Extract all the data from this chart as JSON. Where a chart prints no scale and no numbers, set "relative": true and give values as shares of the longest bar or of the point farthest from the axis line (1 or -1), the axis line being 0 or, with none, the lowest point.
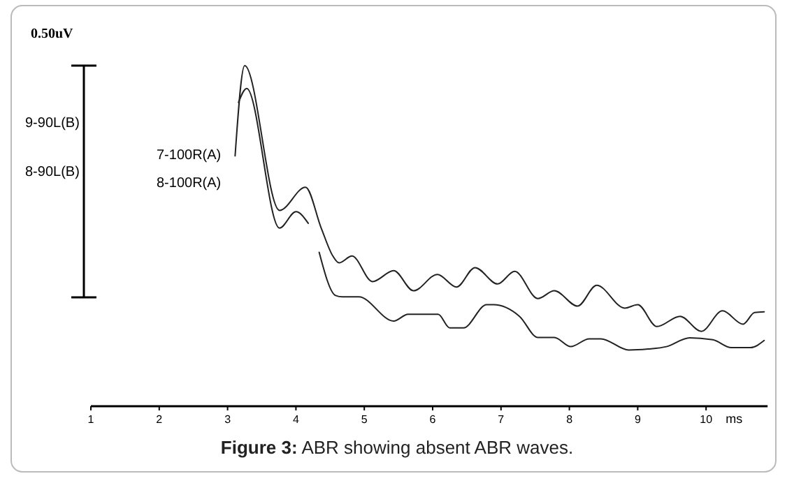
{
  "chart_data": {
    "type": "line",
    "relative": true,
    "xlabel": "ms",
    "xlim": [
      1,
      10.9
    ],
    "xticks": [
      1,
      2,
      3,
      4,
      5,
      6,
      7,
      8,
      9,
      10
    ],
    "line_style": "solid",
    "annotations": [
      "0.50uV",
      "9-90L(B)",
      "8-90L(B)",
      "7-100R(A)",
      "8-100R(A)",
      "Figure 3: ABR showing absent ABR waves."
    ],
    "series": [
      {
        "color": "#222222",
        "x": [
          3.11,
          3.25,
          3.76,
          4.14,
          4.37,
          4.54,
          4.63,
          4.82,
          5.12,
          5.43,
          5.72,
          6.07,
          6.35,
          6.62,
          6.95,
          7.2,
          7.54,
          7.78,
          8.12,
          8.4,
          8.81,
          9.0,
          9.28,
          9.62,
          9.93,
          10.24,
          10.54,
          10.71,
          10.85
        ],
        "values": [
          0.735,
          1,
          0.575,
          0.643,
          0.523,
          0.441,
          0.421,
          0.441,
          0.366,
          0.398,
          0.339,
          0.387,
          0.35,
          0.407,
          0.359,
          0.396,
          0.316,
          0.339,
          0.294,
          0.355,
          0.288,
          0.298,
          0.234,
          0.264,
          0.22,
          0.28,
          0.241,
          0.275,
          0.277
        ]
      },
      {
        "color": "#222222",
        "x": [
          3.16,
          3.28,
          3.76,
          4.0,
          4.18,
          4.26,
          4.34,
          4.58,
          4.68,
          4.92,
          5.43,
          5.64,
          6.08,
          6.25,
          6.45,
          6.79,
          6.89,
          7.27,
          7.54,
          7.78,
          8.02,
          8.29,
          8.46,
          8.87,
          9.15,
          9.42,
          9.76,
          10.1,
          10.37,
          10.65,
          10.85
        ],
        "values": [
          0.892,
          0.933,
          0.523,
          0.571,
          0.537,
          null,
          0.452,
          0.325,
          0.321,
          0.321,
          0.25,
          0.27,
          0.27,
          0.23,
          0.23,
          0.298,
          0.298,
          0.264,
          0.202,
          0.202,
          0.175,
          0.198,
          0.198,
          0.165,
          0.168,
          0.175,
          0.201,
          0.195,
          0.172,
          0.172,
          0.193
        ]
      }
    ]
  }
}
